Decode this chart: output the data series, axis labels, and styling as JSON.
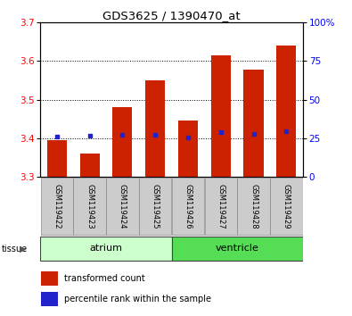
{
  "title": "GDS3625 / 1390470_at",
  "samples": [
    "GSM119422",
    "GSM119423",
    "GSM119424",
    "GSM119425",
    "GSM119426",
    "GSM119427",
    "GSM119428",
    "GSM119429"
  ],
  "bar_bottoms": [
    3.3,
    3.3,
    3.3,
    3.3,
    3.3,
    3.3,
    3.3,
    3.3
  ],
  "bar_tops": [
    3.395,
    3.36,
    3.48,
    3.55,
    3.445,
    3.615,
    3.578,
    3.64
  ],
  "percentile_values": [
    3.405,
    3.406,
    3.408,
    3.41,
    3.402,
    3.415,
    3.412,
    3.418
  ],
  "ylim_left": [
    3.3,
    3.7
  ],
  "ylim_right": [
    0,
    100
  ],
  "yticks_left": [
    3.3,
    3.4,
    3.5,
    3.6,
    3.7
  ],
  "ytick_labels_right": [
    "0",
    "25",
    "50",
    "75",
    "100%"
  ],
  "bar_color": "#cc2200",
  "percentile_color": "#2222cc",
  "tissue_groups": [
    {
      "label": "atrium",
      "start": 0,
      "end": 4,
      "color": "#ccffcc"
    },
    {
      "label": "ventricle",
      "start": 4,
      "end": 8,
      "color": "#55dd55"
    }
  ],
  "bg_color": "#ffffff",
  "label_box_color": "#cccccc"
}
